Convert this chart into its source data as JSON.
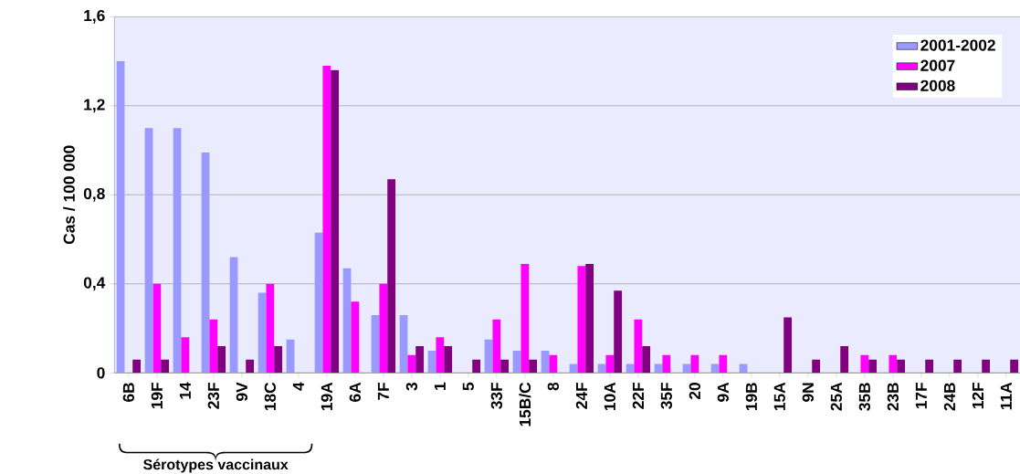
{
  "chart_data": {
    "type": "bar",
    "ylabel": "Cas / 100 000",
    "categories": [
      "6B",
      "19F",
      "14",
      "23F",
      "9V",
      "18C",
      "4",
      "19A",
      "6A",
      "7F",
      "3",
      "1",
      "5",
      "33F",
      "15B/C",
      "8",
      "24F",
      "10A",
      "22F",
      "35F",
      "20",
      "9A",
      "19B",
      "15A",
      "9N",
      "25A",
      "35B",
      "23B",
      "17F",
      "24B",
      "12F",
      "11A"
    ],
    "series": [
      {
        "name": "2001-2002",
        "color": "#9999ff",
        "values": [
          1.4,
          1.1,
          1.1,
          0.99,
          0.52,
          0.36,
          0.15,
          0.63,
          0.47,
          0.26,
          0.26,
          0.1,
          null,
          0.15,
          0.1,
          0.1,
          0.04,
          0.04,
          0.04,
          0.04,
          0.04,
          0.04,
          0.04,
          null,
          null,
          null,
          null,
          null,
          null,
          null,
          null,
          null
        ]
      },
      {
        "name": "2007",
        "color": "#ff00ff",
        "values": [
          null,
          0.4,
          0.16,
          0.24,
          null,
          0.4,
          null,
          1.38,
          0.32,
          0.4,
          0.08,
          0.16,
          null,
          0.24,
          0.49,
          0.08,
          0.48,
          0.08,
          0.24,
          0.08,
          0.08,
          0.08,
          null,
          null,
          null,
          null,
          0.08,
          0.08,
          null,
          null,
          null,
          null
        ]
      },
      {
        "name": "2008",
        "color": "#800080",
        "values": [
          0.06,
          0.06,
          null,
          0.12,
          0.06,
          0.12,
          null,
          1.36,
          null,
          0.87,
          0.12,
          0.12,
          0.06,
          0.06,
          0.06,
          null,
          0.49,
          0.37,
          0.12,
          null,
          null,
          null,
          null,
          0.25,
          0.06,
          0.12,
          0.06,
          0.06,
          0.06,
          0.06,
          0.06,
          0.06
        ]
      }
    ],
    "ylim": [
      0,
      1.6
    ],
    "yticks": [
      0,
      {
        "value": 0.4,
        "label": "0,4"
      },
      {
        "value": 0.8,
        "label": "0,8"
      },
      {
        "value": 1.2,
        "label": "1,2"
      },
      {
        "value": 1.6,
        "label": "1,6"
      }
    ],
    "grid": "y",
    "legend": "top right",
    "annotations": [
      "Sérotypes vaccinaux"
    ]
  }
}
